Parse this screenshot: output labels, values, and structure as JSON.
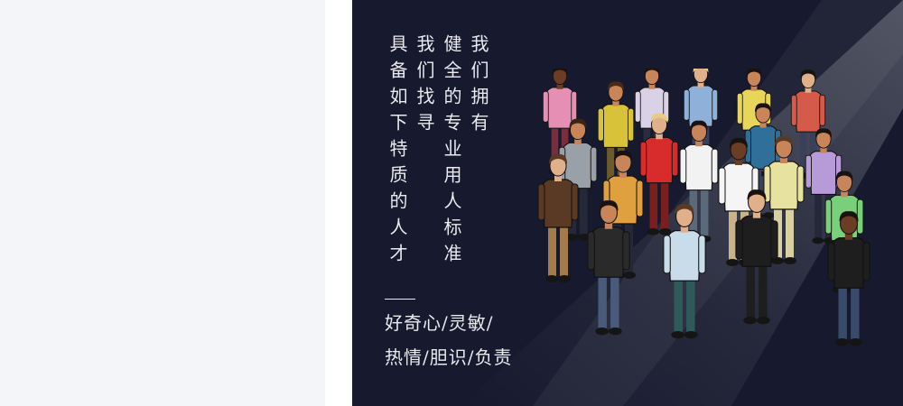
{
  "banner": {
    "columns": [
      "我们拥有",
      "健全的专业用人标准",
      "我们找寻",
      "具备如下特质的人才"
    ],
    "traits": [
      "好奇心/灵敏/",
      "热情/胆识/负责"
    ],
    "colors": {
      "background": "#171a2e",
      "text": "#e9e9ee"
    },
    "illustration": "crowd-of-people-illustration"
  }
}
